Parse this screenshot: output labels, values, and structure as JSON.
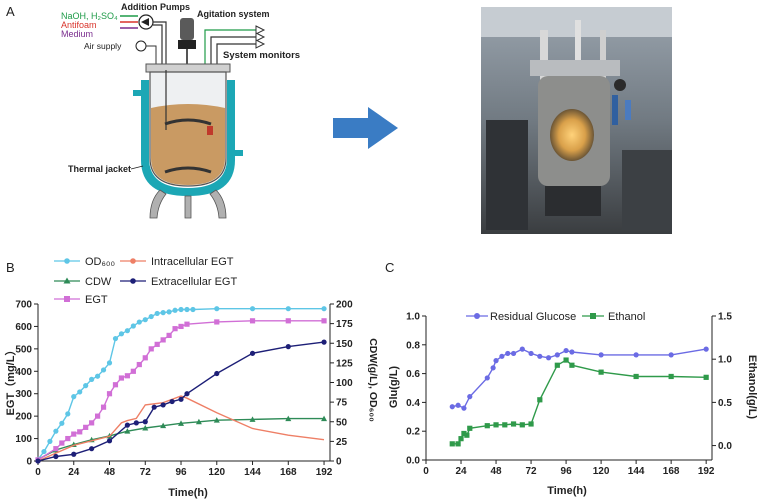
{
  "panel_labels": {
    "a": "A",
    "b": "B",
    "c": "C"
  },
  "schematic": {
    "label_naoh": "NaOH, H₂SO₄",
    "label_antifoam": "Antifoam",
    "label_medium": "Medium",
    "label_air": "Air supply",
    "label_pumps": "Addition Pumps",
    "label_agitation": "Agitation system",
    "label_monitors": "System monitors",
    "label_jacket": "Thermal jacket",
    "colors": {
      "naoh": "#1e9b48",
      "antifoam": "#d9342b",
      "medium": "#7a2d8e",
      "jacket": "#1ca7b5",
      "broth": "#c99a63",
      "arrow": "#3a7cc4"
    }
  },
  "photo": {
    "caption": ""
  },
  "chart_data": [
    {
      "type": "line",
      "panel": "B",
      "xlabel": "Time(h)",
      "ylabel": "EGT（mg/L）",
      "ylabel_right": "CDW(g/L), OD₆₀₀",
      "xticks": [
        0,
        24,
        48,
        72,
        96,
        120,
        144,
        168,
        192
      ],
      "xlim": [
        0,
        196
      ],
      "ylim": [
        0,
        700
      ],
      "yticks": [
        0,
        100,
        200,
        300,
        400,
        500,
        600,
        700
      ],
      "ylim_right": [
        0,
        200
      ],
      "yticks_right": [
        0,
        25,
        50,
        75,
        100,
        125,
        150,
        175,
        200
      ],
      "legend": [
        "OD₆₀₀",
        "CDW",
        "EGT",
        "Intracellular EGT",
        "Extracellular EGT"
      ],
      "series": [
        {
          "name": "OD₆₀₀",
          "axis": "right",
          "color": "#5ec6e6",
          "marker": "circle",
          "x": [
            0,
            4,
            8,
            12,
            16,
            20,
            24,
            28,
            32,
            36,
            40,
            44,
            48,
            52,
            56,
            60,
            64,
            68,
            72,
            76,
            80,
            84,
            88,
            92,
            96,
            100,
            104,
            120,
            144,
            168,
            192
          ],
          "y": [
            2,
            12,
            25,
            38,
            48,
            60,
            82,
            88,
            96,
            104,
            108,
            116,
            125,
            156,
            162,
            166,
            172,
            177,
            180,
            184,
            188,
            189,
            190,
            192,
            193,
            193,
            193,
            194,
            194,
            194,
            194
          ]
        },
        {
          "name": "CDW",
          "axis": "right",
          "color": "#2e8b57",
          "marker": "triangle",
          "x": [
            0,
            12,
            24,
            36,
            48,
            60,
            72,
            84,
            96,
            108,
            120,
            144,
            168,
            192
          ],
          "y": [
            2,
            14,
            21,
            27,
            32,
            38,
            42,
            45,
            48,
            50,
            52,
            53,
            54,
            54
          ]
        },
        {
          "name": "EGT",
          "axis": "left",
          "color": "#d16fd6",
          "marker": "square",
          "x": [
            0,
            12,
            16,
            20,
            24,
            28,
            32,
            36,
            40,
            44,
            48,
            52,
            56,
            60,
            64,
            68,
            72,
            76,
            80,
            84,
            88,
            92,
            96,
            100,
            120,
            144,
            168,
            192
          ],
          "y": [
            5,
            55,
            80,
            100,
            120,
            130,
            150,
            170,
            200,
            240,
            300,
            340,
            370,
            380,
            400,
            430,
            460,
            500,
            520,
            540,
            560,
            590,
            600,
            610,
            620,
            625,
            625,
            625
          ]
        },
        {
          "name": "Intracellular EGT",
          "axis": "left",
          "color": "#ee7f66",
          "marker": "none",
          "x": [
            0,
            12,
            24,
            36,
            48,
            56,
            60,
            66,
            72,
            84,
            96,
            100,
            120,
            144,
            168,
            192
          ],
          "y": [
            0,
            35,
            70,
            90,
            110,
            170,
            180,
            190,
            250,
            260,
            290,
            280,
            215,
            145,
            115,
            95
          ]
        },
        {
          "name": "Extracellular EGT",
          "axis": "left",
          "color": "#1d1f77",
          "marker": "circle",
          "x": [
            0,
            12,
            24,
            36,
            48,
            60,
            66,
            72,
            78,
            84,
            90,
            96,
            100,
            120,
            144,
            168,
            192
          ],
          "y": [
            0,
            20,
            30,
            55,
            90,
            160,
            170,
            175,
            240,
            250,
            265,
            275,
            300,
            390,
            480,
            510,
            530
          ]
        }
      ]
    },
    {
      "type": "line",
      "panel": "C",
      "xlabel": "Time(h)",
      "ylabel": "Glu(g/L)",
      "ylabel_right": "Ethanol(g/L)",
      "xticks": [
        0,
        24,
        48,
        72,
        96,
        120,
        144,
        168,
        192
      ],
      "xlim": [
        0,
        196
      ],
      "ylim": [
        0,
        1.0
      ],
      "yticks": [
        0.0,
        0.2,
        0.4,
        0.6,
        0.8,
        1.0
      ],
      "ytick_labels": [
        "0.0",
        "0.2",
        "0.4",
        "0.6",
        "0.8",
        "1.0"
      ],
      "ylim_right": [
        -0.167,
        1.5
      ],
      "yticks_right": [
        0.0,
        0.5,
        1.0,
        1.5
      ],
      "ytick_labels_right": [
        "0.0",
        "0.5",
        "1.0",
        "1.5"
      ],
      "legend": [
        "Residual Glucose",
        "Ethanol"
      ],
      "series": [
        {
          "name": "Residual Glucose",
          "axis": "left",
          "color": "#6b6be4",
          "marker": "circle",
          "x": [
            18,
            22,
            26,
            30,
            42,
            46,
            48,
            52,
            56,
            60,
            66,
            72,
            78,
            84,
            90,
            96,
            100,
            120,
            144,
            168,
            192
          ],
          "y": [
            0.37,
            0.38,
            0.36,
            0.44,
            0.57,
            0.64,
            0.69,
            0.72,
            0.74,
            0.74,
            0.77,
            0.74,
            0.72,
            0.71,
            0.73,
            0.76,
            0.75,
            0.73,
            0.73,
            0.73,
            0.77
          ]
        },
        {
          "name": "Ethanol",
          "axis": "right",
          "color": "#2f9a4a",
          "marker": "square",
          "x": [
            18,
            22,
            24,
            26,
            28,
            30,
            42,
            48,
            54,
            60,
            66,
            72,
            78,
            90,
            96,
            100,
            120,
            144,
            168,
            192
          ],
          "y": [
            0.02,
            0.02,
            0.08,
            0.14,
            0.12,
            0.2,
            0.23,
            0.24,
            0.24,
            0.25,
            0.24,
            0.25,
            0.53,
            0.93,
            0.99,
            0.93,
            0.85,
            0.8,
            0.8,
            0.79
          ]
        }
      ]
    }
  ]
}
